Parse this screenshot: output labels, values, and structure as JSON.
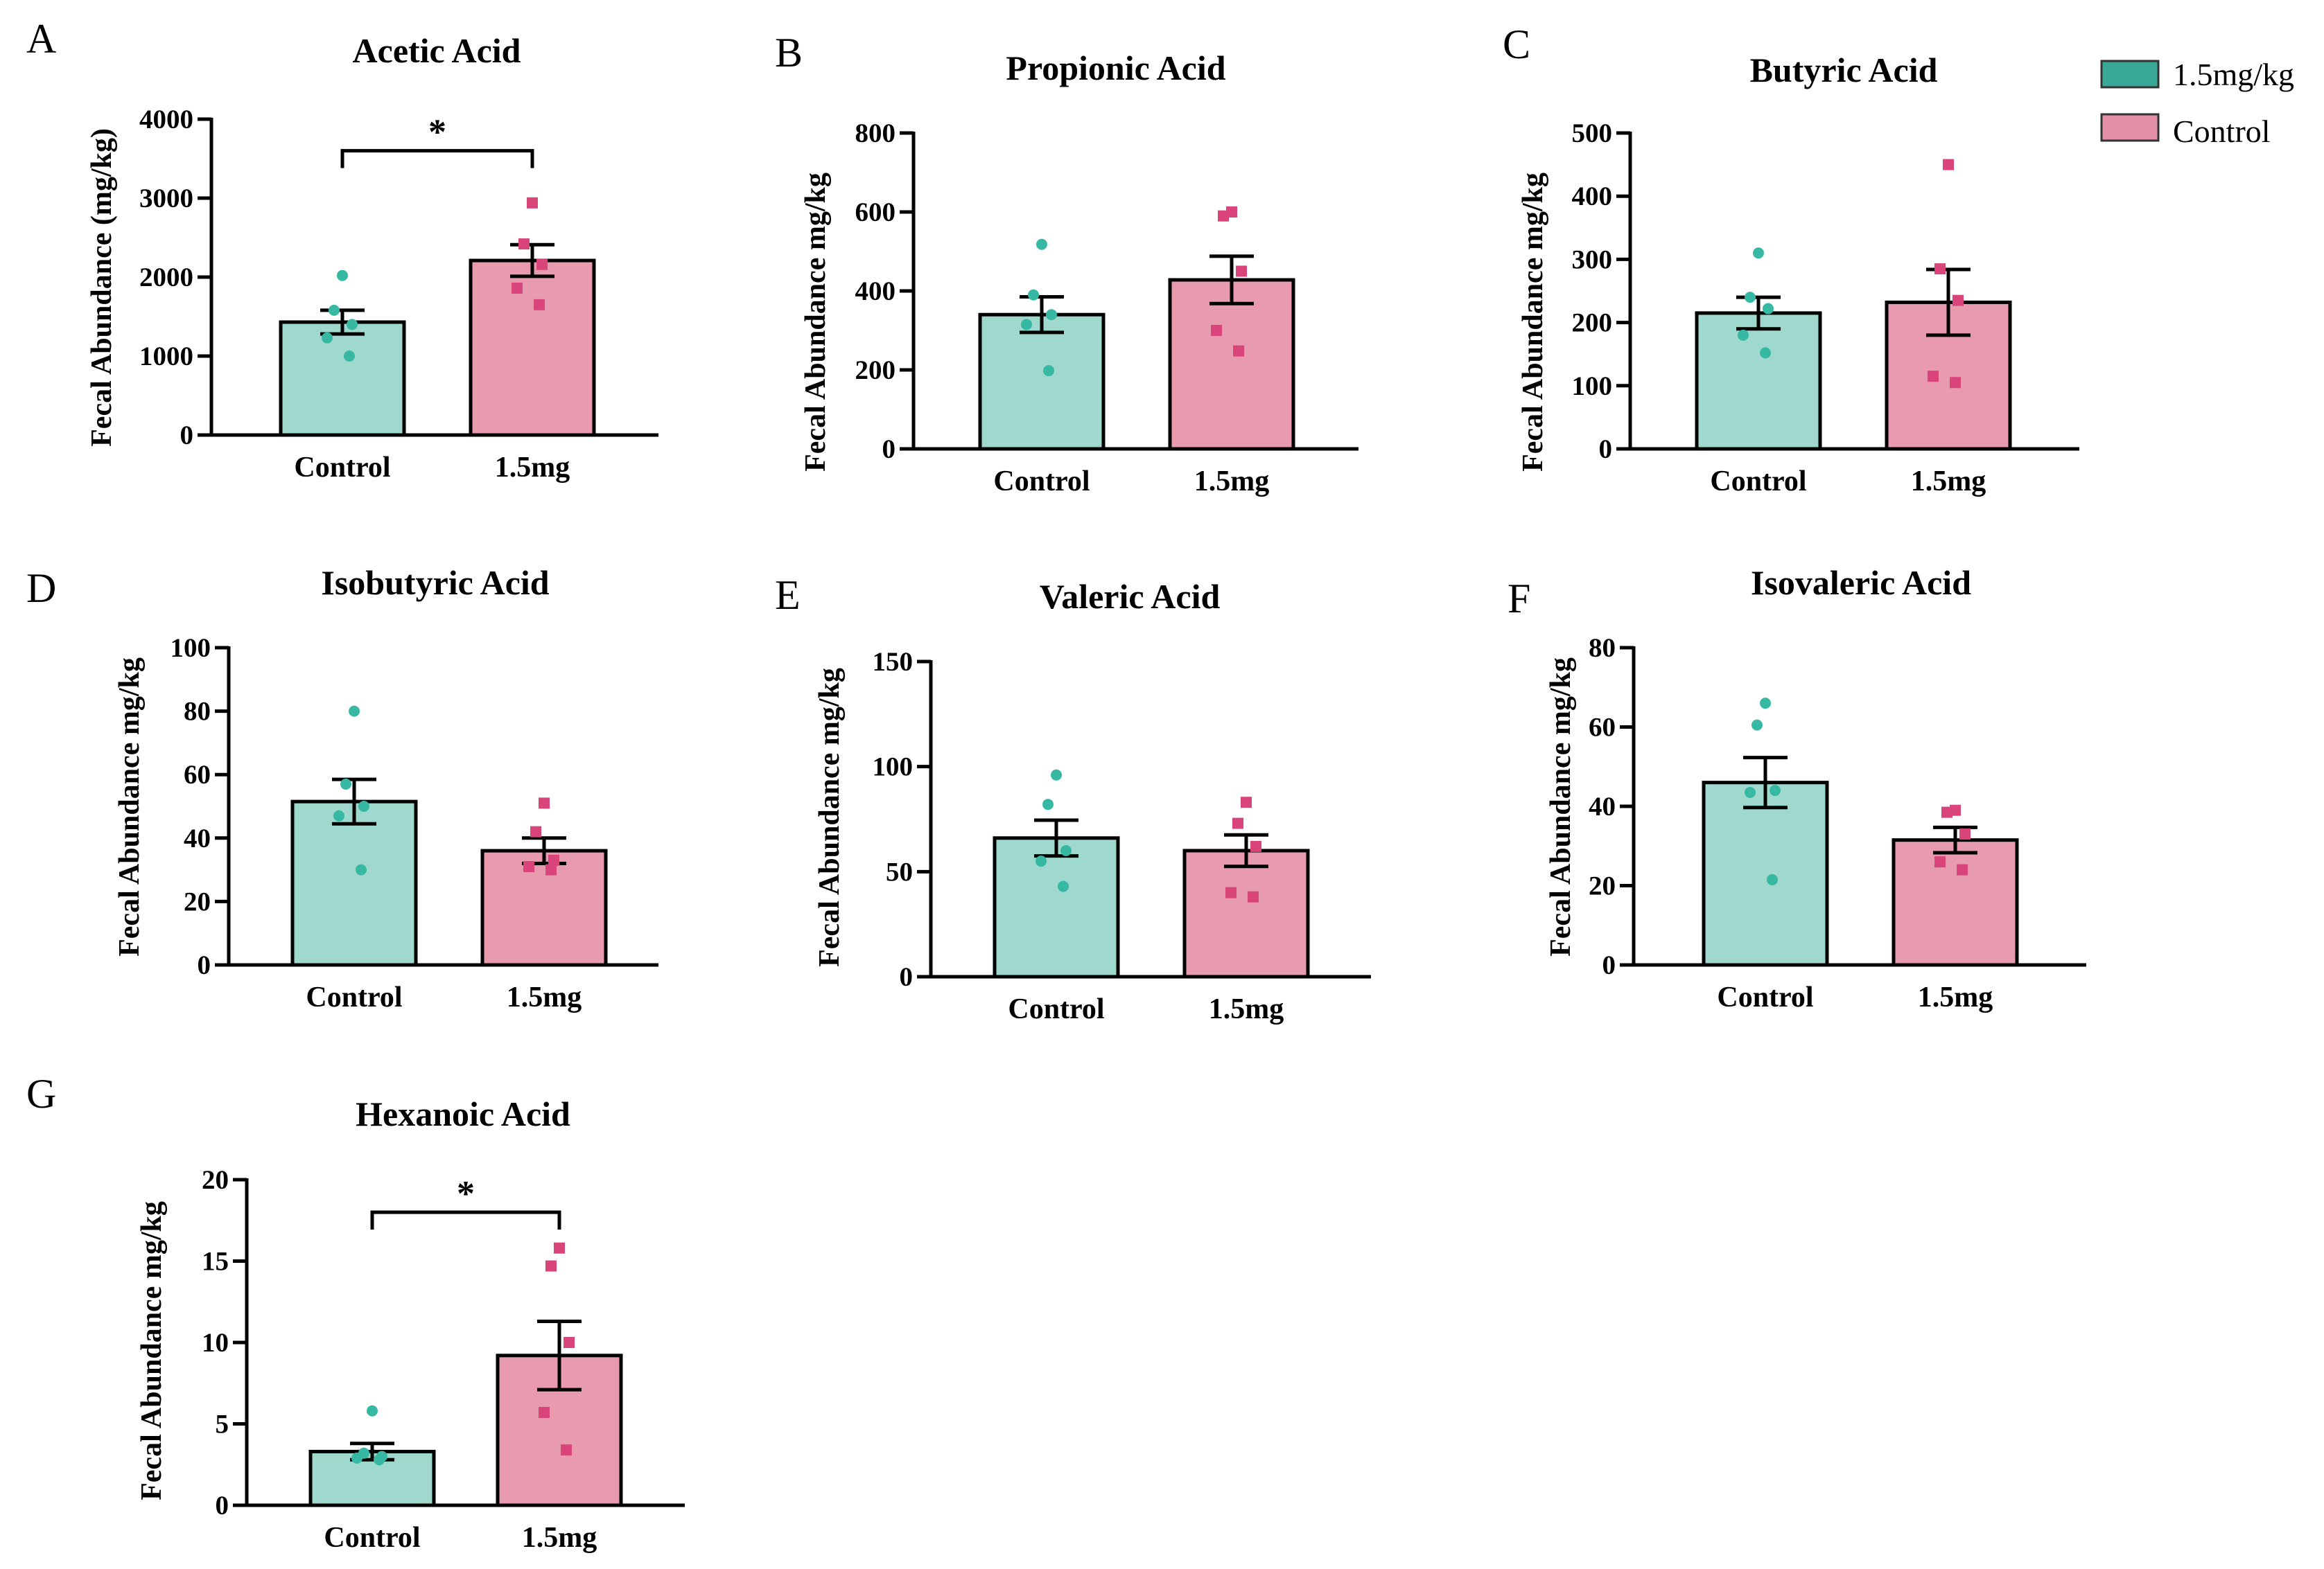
{
  "legend": {
    "items": [
      {
        "label": "1.5mg/kg",
        "color": "#3aa896"
      },
      {
        "label": "Control",
        "color": "#e48fa8"
      }
    ]
  },
  "colors": {
    "control_fill": "#9fd8cc",
    "control_point": "#36b8a3",
    "treat_fill": "#e89aae",
    "treat_point": "#d9457a"
  },
  "chart_data": [
    {
      "panel": "A",
      "type": "bar",
      "title": "Acetic Acid",
      "ylabel": "Fecal Abundance (mg/kg)",
      "ylim": [
        0,
        4000
      ],
      "yticks": [
        "0",
        "1000",
        "2000",
        "3000",
        "4000"
      ],
      "categories": [
        "Control",
        "1.5mg"
      ],
      "values": [
        1430,
        2210
      ],
      "sem": [
        150,
        200
      ],
      "points": [
        [
          2020,
          1580,
          1400,
          1230,
          1000
        ],
        [
          2940,
          2420,
          2160,
          1860,
          1650
        ]
      ],
      "significance": "*"
    },
    {
      "panel": "B",
      "type": "bar",
      "title": "Propionic Acid",
      "ylabel": "Fecal Abundance mg/kg",
      "ylim": [
        0,
        800
      ],
      "yticks": [
        "0",
        "200",
        "400",
        "600",
        "800"
      ],
      "categories": [
        "Control",
        "1.5mg"
      ],
      "values": [
        340,
        428
      ],
      "sem": [
        45,
        60
      ],
      "points": [
        [
          518,
          390,
          340,
          315,
          198
        ],
        [
          600,
          590,
          450,
          300,
          248
        ]
      ],
      "significance": ""
    },
    {
      "panel": "C",
      "type": "bar",
      "title": "Butyric Acid",
      "ylabel": "Fecal Abundance mg/kg",
      "ylim": [
        0,
        500
      ],
      "yticks": [
        "0",
        "100",
        "200",
        "300",
        "400",
        "500"
      ],
      "categories": [
        "Control",
        "1.5mg"
      ],
      "values": [
        215,
        232
      ],
      "sem": [
        25,
        52
      ],
      "points": [
        [
          310,
          240,
          222,
          180,
          152
        ],
        [
          450,
          285,
          235,
          115,
          105
        ]
      ],
      "significance": ""
    },
    {
      "panel": "D",
      "type": "bar",
      "title": "Isobutyric Acid",
      "ylabel": "Fecal Abundance mg/kg",
      "ylim": [
        0,
        100
      ],
      "yticks": [
        "0",
        "20",
        "40",
        "60",
        "80",
        "100"
      ],
      "categories": [
        "Control",
        "1.5mg"
      ],
      "values": [
        51.5,
        36
      ],
      "sem": [
        7,
        4
      ],
      "points": [
        [
          80,
          57,
          50,
          47,
          30
        ],
        [
          51,
          42,
          33,
          31,
          30
        ]
      ],
      "significance": ""
    },
    {
      "panel": "E",
      "type": "bar",
      "title": "Valeric Acid",
      "ylabel": "Fecal Abundance mg/kg",
      "ylim": [
        0,
        150
      ],
      "yticks": [
        "0",
        "50",
        "100",
        "150"
      ],
      "categories": [
        "Control",
        "1.5mg"
      ],
      "values": [
        66,
        60
      ],
      "sem": [
        8.5,
        7.5
      ],
      "points": [
        [
          96,
          82,
          60,
          55,
          43
        ],
        [
          83,
          73,
          62,
          40,
          38
        ]
      ],
      "significance": ""
    },
    {
      "panel": "F",
      "type": "bar",
      "title": "Isovaleric Acid",
      "ylabel": "Fecal Abundance mg/kg",
      "ylim": [
        0,
        80
      ],
      "yticks": [
        "0",
        "20",
        "40",
        "60",
        "80"
      ],
      "categories": [
        "Control",
        "1.5mg"
      ],
      "values": [
        46,
        31.5
      ],
      "sem": [
        6.3,
        3.2
      ],
      "points": [
        [
          66,
          60.5,
          44,
          43.5,
          21.5
        ],
        [
          39,
          38.5,
          33,
          26,
          24
        ]
      ],
      "significance": ""
    },
    {
      "panel": "G",
      "type": "bar",
      "title": "Hexanoic Acid",
      "ylabel": "Fecal Abundance mg/kg",
      "ylim": [
        0,
        20
      ],
      "yticks": [
        "0",
        "5",
        "10",
        "15",
        "20"
      ],
      "categories": [
        "Control",
        "1.5mg"
      ],
      "values": [
        3.3,
        9.2
      ],
      "sem": [
        0.5,
        2.1
      ],
      "points": [
        [
          5.8,
          3.2,
          3.0,
          2.9,
          2.8
        ],
        [
          15.8,
          14.7,
          10.0,
          5.7,
          3.4
        ]
      ],
      "significance": "*"
    }
  ]
}
